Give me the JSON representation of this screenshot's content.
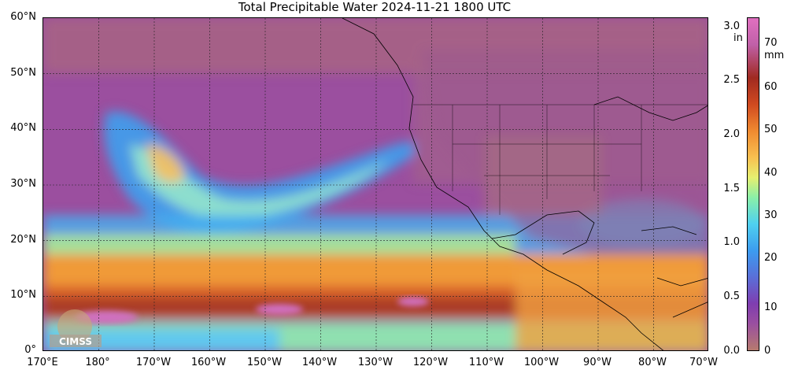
{
  "title": "Total Precipitable Water  2024-11-21 1800 UTC",
  "logo_text": "CIMSS",
  "lat_labels": [
    "60°N",
    "50°N",
    "40°N",
    "30°N",
    "20°N",
    "10°N",
    "0°"
  ],
  "lon_labels": [
    "170°E",
    "180°",
    "170°W",
    "160°W",
    "150°W",
    "140°W",
    "130°W",
    "120°W",
    "110°W",
    "100°W",
    "90°W",
    "80°W",
    "70°W"
  ],
  "colorbar": {
    "in_unit": "in",
    "mm_unit": "mm",
    "in_ticks": [
      "3.0",
      "2.5",
      "2.0",
      "1.5",
      "1.0",
      "0.5",
      "0.0"
    ],
    "mm_ticks": [
      "70",
      "60",
      "50",
      "40",
      "30",
      "20",
      "10",
      "0"
    ]
  },
  "colors": {
    "dry": "#9a4f9e",
    "moist_low": "#3c9cf0",
    "moist_mid": "#8af0a8",
    "wet": "#f08a30",
    "very_wet": "#a02a20"
  }
}
